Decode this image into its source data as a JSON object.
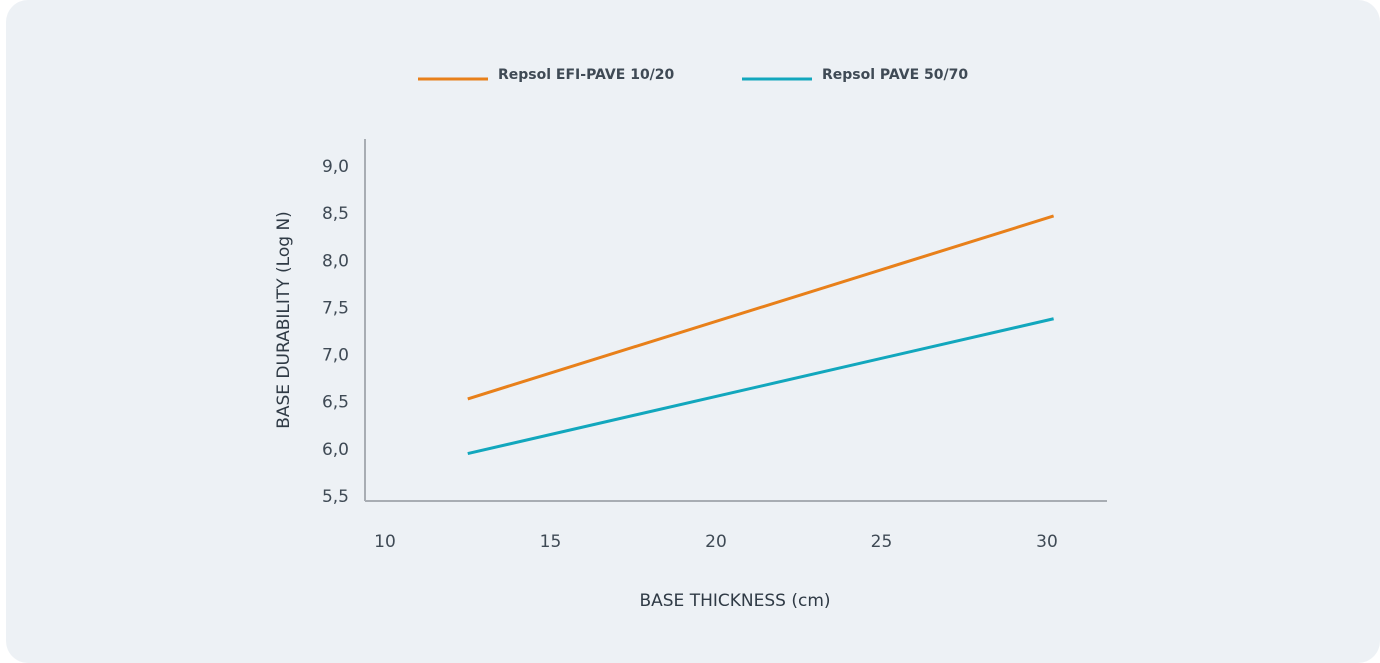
{
  "chart_data": {
    "type": "line",
    "title": "",
    "xlabel": "BASE THICKNESS (cm)",
    "ylabel": "BASE DURABILITY (Log N)",
    "xlim": [
      10,
      30
    ],
    "ylim": [
      5.5,
      9.0
    ],
    "x_ticks": [
      "10",
      "15",
      "20",
      "25",
      "30"
    ],
    "y_ticks": [
      "5,5",
      "6,0",
      "6,5",
      "7,0",
      "7,5",
      "8,0",
      "8,5",
      "9,0"
    ],
    "grid": false,
    "legend_position": "top-center",
    "series": [
      {
        "name": "Repsol EFI-PAVE 10/20",
        "color": "#e8801a",
        "x": [
          12.5,
          30.2
        ],
        "y": [
          6.53,
          8.47
        ]
      },
      {
        "name": "Repsol PAVE 50/70",
        "color": "#12a7bd",
        "x": [
          12.5,
          30.2
        ],
        "y": [
          5.95,
          7.38
        ]
      }
    ]
  },
  "colors": {
    "background": "#edf1f5",
    "axis": "#a8adb3"
  }
}
